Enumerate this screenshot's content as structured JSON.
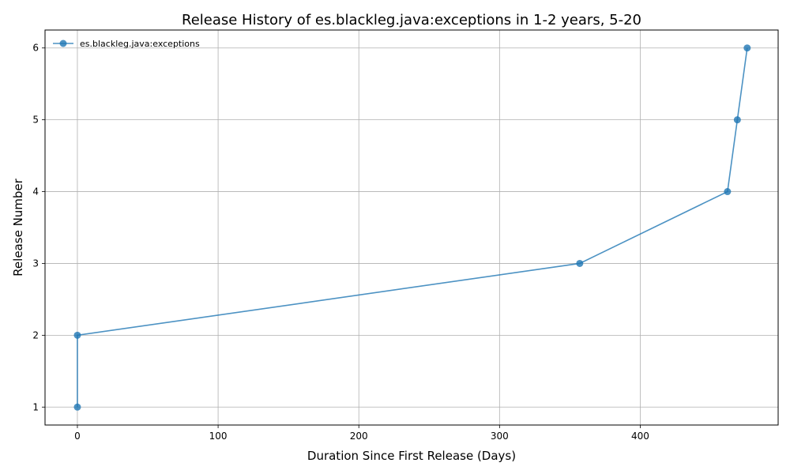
{
  "chart_data": {
    "type": "line",
    "title": "Release History of es.blackleg.java:exceptions in 1-2 years, 5-20",
    "xlabel": "Duration Since First Release (Days)",
    "ylabel": "Release Number",
    "xlim": [
      -23,
      498
    ],
    "ylim": [
      0.75,
      6.25
    ],
    "xticks": [
      0,
      100,
      200,
      300,
      400
    ],
    "yticks": [
      1,
      2,
      3,
      4,
      5,
      6
    ],
    "grid": true,
    "legend_position": "top-left",
    "series": [
      {
        "name": "es.blackleg.java:exceptions",
        "color": "#1f77b4",
        "x": [
          0,
          0,
          357,
          462,
          469,
          476
        ],
        "y": [
          1,
          2,
          3,
          4,
          5,
          6
        ]
      }
    ]
  }
}
